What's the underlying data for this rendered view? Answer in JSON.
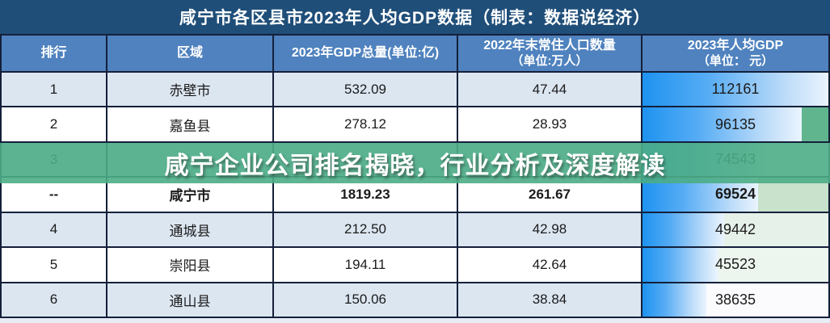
{
  "title": "咸宁市各区县市2023年人均GDP数据（制表：数据说经济）",
  "overlay": {
    "text": "咸宁企业公司排名揭晓，行业分析及深度解读"
  },
  "table": {
    "headers": [
      {
        "label": "排行",
        "sub": ""
      },
      {
        "label": "区域",
        "sub": ""
      },
      {
        "label": "2023年GDP总量(单位:亿)",
        "sub": ""
      },
      {
        "label": "2022年末常住人口数量",
        "sub": "（单位:万人）"
      },
      {
        "label": "2023年人均GDP",
        "sub": "（单位： 元）"
      }
    ],
    "rows": [
      {
        "rank": "1",
        "region": "赤壁市",
        "gdp": "532.09",
        "population": "47.44",
        "per_gdp": "112161",
        "bar_pct": 100,
        "bold": false,
        "row_bg": "#DCE6F1",
        "tail_bg": "#FFFFFF"
      },
      {
        "rank": "2",
        "region": "嘉鱼县",
        "gdp": "278.12",
        "population": "28.93",
        "per_gdp": "96135",
        "bar_pct": 85.7,
        "bold": false,
        "row_bg": "#FFFFFF",
        "tail_bg": "#60B58F"
      },
      {
        "rank": "3",
        "region": "",
        "gdp": "",
        "population": "",
        "per_gdp": "74543",
        "bar_pct": 66.5,
        "bold": false,
        "row_bg": "#DCE6F1",
        "tail_bg": "#FFFFFF"
      },
      {
        "rank": "--",
        "region": "咸宁市",
        "gdp": "1819.23",
        "population": "261.67",
        "per_gdp": "69524",
        "bar_pct": 62.0,
        "bold": true,
        "row_bg": "#FFFFFF",
        "tail_bg": "#C8E2CC"
      },
      {
        "rank": "4",
        "region": "通城县",
        "gdp": "212.50",
        "population": "42.98",
        "per_gdp": "49442",
        "bar_pct": 44.1,
        "bold": false,
        "row_bg": "#DCE6F1",
        "tail_bg": "#E6F1E9"
      },
      {
        "rank": "5",
        "region": "崇阳县",
        "gdp": "194.11",
        "population": "42.64",
        "per_gdp": "45523",
        "bar_pct": 40.6,
        "bold": false,
        "row_bg": "#FFFFFF",
        "tail_bg": "#ECF5EE"
      },
      {
        "rank": "6",
        "region": "通山县",
        "gdp": "150.06",
        "population": "38.84",
        "per_gdp": "38635",
        "bar_pct": 34.4,
        "bold": false,
        "row_bg": "#DCE6F1",
        "tail_bg": "#FBFBFE"
      }
    ]
  },
  "colors": {
    "title_bg": "#1F4E79",
    "header_bg": "#4F82BE",
    "row_alt_bg": "#DCE6F1",
    "grid_line": "#14203A",
    "banner_green": "rgba(77,173,134,0.9)",
    "data_bar_blue": "#1E93F0"
  },
  "chart_data": {
    "type": "table",
    "title": "咸宁市各区县市2023年人均GDP数据（制表：数据说经济）",
    "columns": [
      "排行",
      "区域",
      "2023年GDP总量(单位:亿)",
      "2022年末常住人口数量（单位:万人）",
      "2023年人均GDP（单位： 元）"
    ],
    "rows": [
      [
        "1",
        "赤壁市",
        "532.09",
        "47.44",
        "112161"
      ],
      [
        "2",
        "嘉鱼县",
        "278.12",
        "28.93",
        "96135"
      ],
      [
        "3",
        "",
        "",
        "",
        "74543"
      ],
      [
        "--",
        "咸宁市",
        "1819.23",
        "261.67",
        "69524"
      ],
      [
        "4",
        "通城县",
        "212.50",
        "42.98",
        "49442"
      ],
      [
        "5",
        "崇阳县",
        "194.11",
        "42.64",
        "45523"
      ],
      [
        "6",
        "通山县",
        "150.06",
        "38.84",
        "38635"
      ]
    ],
    "data_bar_column": "2023年人均GDP（单位： 元）",
    "data_bar_scale_max": 112161,
    "watermark_text": "咸宁企业公司排名揭晓，行业分析及深度解读"
  }
}
